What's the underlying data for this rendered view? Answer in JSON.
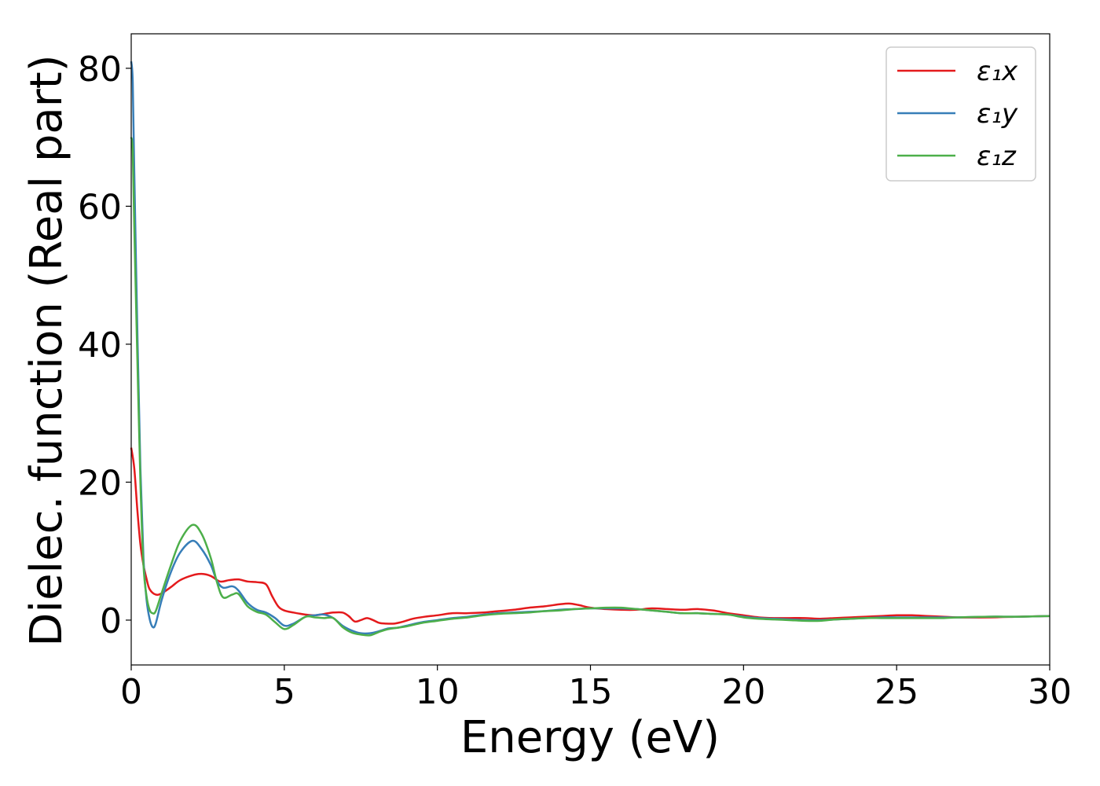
{
  "chart_data": {
    "type": "line",
    "xlabel": "Energy (eV)",
    "ylabel": "Dielec. function (Real part)",
    "xlim": [
      0,
      30
    ],
    "ylim": [
      -6.5,
      85
    ],
    "xticks": [
      "0",
      "5",
      "10",
      "15",
      "20",
      "25",
      "30"
    ],
    "yticks": [
      "0",
      "20",
      "40",
      "60",
      "80"
    ],
    "grid": false,
    "legend_position": "top-right",
    "series": [
      {
        "name": "ε₁x",
        "color": "#e41a1c",
        "x": [
          0,
          0.1,
          0.2,
          0.3,
          0.4,
          0.5,
          0.6,
          0.8,
          1.0,
          1.3,
          1.6,
          2.0,
          2.3,
          2.6,
          2.9,
          3.2,
          3.5,
          3.8,
          4.1,
          4.4,
          4.6,
          4.8,
          5.0,
          5.3,
          5.7,
          6.0,
          6.3,
          6.6,
          6.9,
          7.1,
          7.3,
          7.5,
          7.7,
          7.9,
          8.1,
          8.3,
          8.6,
          8.9,
          9.2,
          9.6,
          10.0,
          10.5,
          11.0,
          11.5,
          12.0,
          12.5,
          13.0,
          13.5,
          14.0,
          14.3,
          14.6,
          15.0,
          15.5,
          16.0,
          16.5,
          17.0,
          17.5,
          18.0,
          18.5,
          19.0,
          19.5,
          20.0,
          20.5,
          21.0,
          21.5,
          22.0,
          22.5,
          23.0,
          23.5,
          24.0,
          24.5,
          25.0,
          25.5,
          26.0,
          26.5,
          27.0,
          28.0,
          29.0,
          30.0
        ],
        "y": [
          25,
          22,
          16,
          11,
          8,
          6,
          4.5,
          3.7,
          3.9,
          4.8,
          5.8,
          6.5,
          6.7,
          6.4,
          5.6,
          5.8,
          5.9,
          5.6,
          5.5,
          5.2,
          3.5,
          2.0,
          1.4,
          1.1,
          0.8,
          0.7,
          0.9,
          1.1,
          1.1,
          0.6,
          -0.2,
          0.0,
          0.3,
          0.0,
          -0.4,
          -0.5,
          -0.5,
          -0.2,
          0.2,
          0.5,
          0.7,
          1.0,
          1.0,
          1.1,
          1.3,
          1.5,
          1.8,
          2.0,
          2.3,
          2.4,
          2.2,
          1.8,
          1.6,
          1.5,
          1.5,
          1.7,
          1.6,
          1.5,
          1.6,
          1.4,
          1.0,
          0.7,
          0.4,
          0.3,
          0.3,
          0.3,
          0.2,
          0.3,
          0.4,
          0.5,
          0.6,
          0.7,
          0.7,
          0.6,
          0.5,
          0.4,
          0.4,
          0.5,
          0.6
        ]
      },
      {
        "name": "ε₁y",
        "color": "#377eb8",
        "x": [
          0,
          0.05,
          0.1,
          0.2,
          0.3,
          0.4,
          0.5,
          0.6,
          0.7,
          0.8,
          1.0,
          1.3,
          1.6,
          2.0,
          2.3,
          2.6,
          2.8,
          3.0,
          3.3,
          3.5,
          3.8,
          4.1,
          4.4,
          4.7,
          5.0,
          5.3,
          5.7,
          6.0,
          6.3,
          6.6,
          6.9,
          7.2,
          7.5,
          7.8,
          8.1,
          8.4,
          8.7,
          9.0,
          9.5,
          10.0,
          10.5,
          11.0,
          11.5,
          12.0,
          12.5,
          13.0,
          13.5,
          14.0,
          14.5,
          15.0,
          15.5,
          16.0,
          16.5,
          17.0,
          17.5,
          18.0,
          18.5,
          19.0,
          19.5,
          20.0,
          20.5,
          21.0,
          21.5,
          22.0,
          22.5,
          23.0,
          23.5,
          24.0,
          24.5,
          25.0,
          25.5,
          26.0,
          26.5,
          27.0,
          28.0,
          29.0,
          30.0
        ],
        "y": [
          81,
          78,
          65,
          42,
          22,
          9,
          3,
          0.2,
          -1,
          -0.5,
          3.0,
          7.0,
          9.8,
          11.5,
          10.3,
          8.0,
          5.7,
          4.7,
          4.9,
          4.3,
          2.5,
          1.5,
          1.1,
          0.3,
          -0.8,
          -0.5,
          0.5,
          0.7,
          0.8,
          0.3,
          -0.8,
          -1.5,
          -1.9,
          -1.9,
          -1.6,
          -1.2,
          -1.1,
          -0.8,
          -0.3,
          0.0,
          0.3,
          0.5,
          0.8,
          1.0,
          1.1,
          1.2,
          1.3,
          1.5,
          1.6,
          1.7,
          1.7,
          1.7,
          1.6,
          1.4,
          1.2,
          1.0,
          1.0,
          0.9,
          0.8,
          0.5,
          0.3,
          0.2,
          0.1,
          0.0,
          0.0,
          0.1,
          0.2,
          0.3,
          0.4,
          0.4,
          0.4,
          0.4,
          0.4,
          0.4,
          0.5,
          0.5,
          0.6
        ]
      },
      {
        "name": "ε₁z",
        "color": "#4daf4a",
        "x": [
          0,
          0.05,
          0.1,
          0.2,
          0.3,
          0.4,
          0.5,
          0.6,
          0.7,
          0.8,
          1.0,
          1.3,
          1.6,
          2.0,
          2.3,
          2.6,
          2.8,
          3.0,
          3.3,
          3.5,
          3.8,
          4.1,
          4.4,
          4.7,
          5.0,
          5.3,
          5.7,
          6.0,
          6.3,
          6.6,
          6.9,
          7.2,
          7.5,
          7.8,
          8.1,
          8.4,
          8.7,
          9.0,
          9.5,
          10.0,
          10.5,
          11.0,
          11.5,
          12.0,
          12.5,
          13.0,
          13.5,
          14.0,
          14.5,
          15.0,
          15.5,
          16.0,
          16.5,
          17.0,
          17.5,
          18.0,
          18.5,
          19.0,
          19.5,
          20.0,
          20.5,
          21.0,
          21.5,
          22.0,
          22.5,
          23.0,
          23.5,
          24.0,
          24.5,
          25.0,
          25.5,
          26.0,
          26.5,
          27.0,
          28.0,
          29.0,
          30.0
        ],
        "y": [
          70,
          68,
          57,
          38,
          20,
          8,
          3.5,
          1.5,
          1.0,
          1.3,
          4.0,
          8.0,
          11.5,
          13.8,
          12.5,
          9.0,
          5.5,
          3.3,
          3.7,
          3.8,
          2.0,
          1.2,
          0.8,
          -0.3,
          -1.3,
          -0.7,
          0.5,
          0.4,
          0.3,
          0.3,
          -1.0,
          -1.8,
          -2.1,
          -2.2,
          -1.7,
          -1.3,
          -1.1,
          -0.9,
          -0.4,
          -0.1,
          0.2,
          0.4,
          0.7,
          0.9,
          1.0,
          1.1,
          1.3,
          1.4,
          1.6,
          1.7,
          1.8,
          1.8,
          1.6,
          1.4,
          1.2,
          1.0,
          1.0,
          0.9,
          0.8,
          0.4,
          0.2,
          0.1,
          0.0,
          -0.1,
          -0.1,
          0.1,
          0.2,
          0.3,
          0.3,
          0.3,
          0.3,
          0.3,
          0.3,
          0.4,
          0.5,
          0.5,
          0.6
        ]
      }
    ]
  }
}
